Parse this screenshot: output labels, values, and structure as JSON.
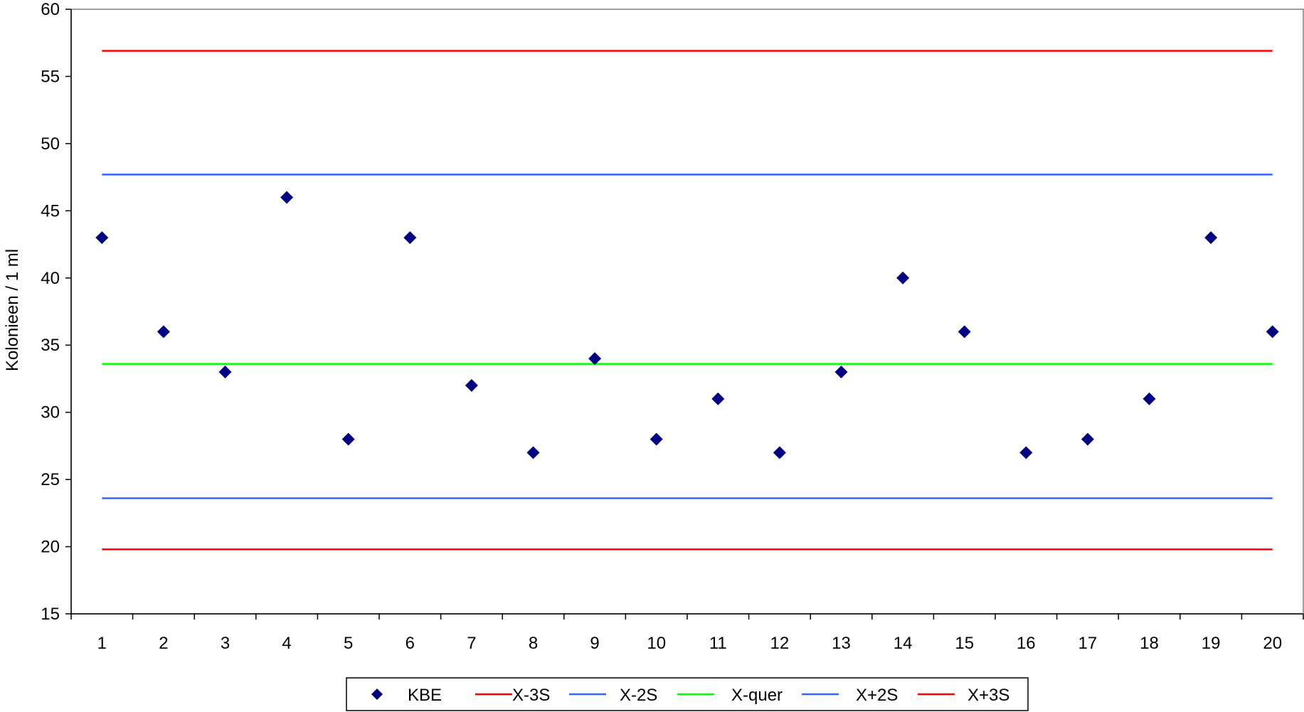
{
  "chart_data": {
    "type": "scatter",
    "title": "",
    "xlabel": "",
    "ylabel": "Kolonieen  / 1 ml",
    "ylim": [
      15,
      60
    ],
    "yticks": [
      15,
      20,
      25,
      30,
      35,
      40,
      45,
      50,
      55,
      60
    ],
    "categories": [
      "1",
      "2",
      "3",
      "4",
      "5",
      "6",
      "7",
      "8",
      "9",
      "10",
      "11",
      "12",
      "13",
      "14",
      "15",
      "16",
      "17",
      "18",
      "19",
      "20"
    ],
    "grid": false,
    "legend_position": "bottom",
    "series": [
      {
        "name": "KBE",
        "kind": "marker",
        "marker": "diamond",
        "color": "#000080",
        "values": [
          43,
          36,
          33,
          46,
          28,
          43,
          32,
          27,
          34,
          28,
          31,
          27,
          33,
          40,
          36,
          27,
          28,
          31,
          43,
          36
        ]
      },
      {
        "name": "X-3S",
        "kind": "line",
        "color": "#ff0000",
        "value": 19.8
      },
      {
        "name": "X-2S",
        "kind": "line",
        "color": "#3366ff",
        "value": 23.6
      },
      {
        "name": "X-quer",
        "kind": "line",
        "color": "#00ff00",
        "value": 33.6
      },
      {
        "name": "X+2S",
        "kind": "line",
        "color": "#3366ff",
        "value": 47.7
      },
      {
        "name": "X+3S",
        "kind": "line",
        "color": "#ff0000",
        "value": 56.9
      }
    ]
  }
}
